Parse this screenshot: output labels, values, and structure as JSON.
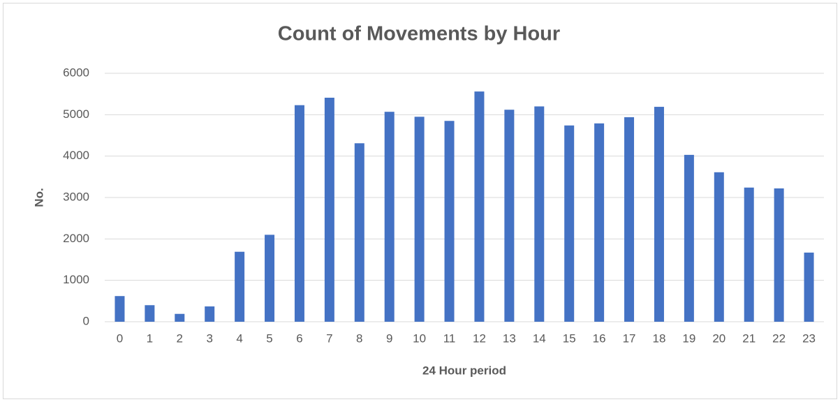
{
  "chart_data": {
    "type": "bar",
    "title": "Count of Movements by Hour",
    "x_label": "24 Hour period",
    "y_label": "No.",
    "categories": [
      "0",
      "1",
      "2",
      "3",
      "4",
      "5",
      "6",
      "7",
      "8",
      "9",
      "10",
      "11",
      "12",
      "13",
      "14",
      "15",
      "16",
      "17",
      "18",
      "19",
      "20",
      "21",
      "22",
      "23"
    ],
    "values": [
      620,
      400,
      190,
      370,
      1690,
      2100,
      5230,
      5410,
      4310,
      5070,
      4950,
      4850,
      5560,
      5120,
      5200,
      4740,
      4790,
      4940,
      5190,
      4030,
      3610,
      3240,
      3220,
      1670
    ],
    "color": "#4472c4",
    "ylim": [
      0,
      6000
    ],
    "yticks": [
      0,
      1000,
      2000,
      3000,
      4000,
      5000,
      6000
    ],
    "grid": true
  }
}
